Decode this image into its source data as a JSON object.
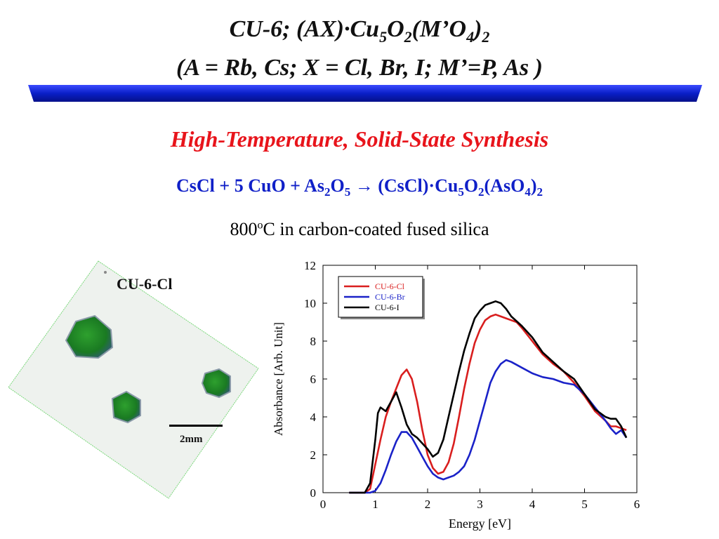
{
  "header": {
    "title_prefix": "CU-6; (AX)·Cu",
    "title_sub1": "5",
    "title_mid1": "O",
    "title_sub2": "2",
    "title_mid2": "(M’O",
    "title_sub3": "4",
    "title_mid3": ")",
    "title_sub4": "2",
    "title_line2": "(A = Rb, Cs; X = Cl, Br, I; M’=P, As )"
  },
  "colors": {
    "banner": "#0a1fc8",
    "subtitle": "#e8141b",
    "equation": "#1020c8"
  },
  "subtitle": "High-Temperature, Solid-State Synthesis",
  "equation": {
    "p1": "CsCl + 5 CuO + As",
    "s1": "2",
    "p2": "O",
    "s2": "5",
    "arrow": "→",
    "p3": " (CsCl)·Cu",
    "s3": "5",
    "p4": "O",
    "s4": "2",
    "p5": "(AsO",
    "s5": "4",
    "p6": ")",
    "s6": "2"
  },
  "condition": {
    "prefix": "800",
    "sup": "o",
    "suffix": "C in carbon-coated fused silica"
  },
  "photo": {
    "label": "CU-6-Cl",
    "scale_label": "2mm"
  },
  "chart_data": {
    "type": "line",
    "title": "",
    "xlabel": "Energy [eV]",
    "ylabel": "Absorbance [Arb. Unit]",
    "xlim": [
      0,
      6
    ],
    "ylim": [
      0,
      12
    ],
    "xticks": [
      0,
      1,
      2,
      3,
      4,
      5,
      6
    ],
    "yticks": [
      0,
      2,
      4,
      6,
      8,
      10,
      12
    ],
    "legend_position": "top-left",
    "series": [
      {
        "name": "CU-6-Cl",
        "color": "#d91e1e",
        "x": [
          0.5,
          0.8,
          0.9,
          1.0,
          1.1,
          1.2,
          1.3,
          1.4,
          1.5,
          1.6,
          1.7,
          1.8,
          1.9,
          2.0,
          2.1,
          2.2,
          2.3,
          2.4,
          2.5,
          2.6,
          2.7,
          2.8,
          2.9,
          3.0,
          3.1,
          3.2,
          3.3,
          3.4,
          3.5,
          3.6,
          3.7,
          3.8,
          4.0,
          4.2,
          4.4,
          4.6,
          4.8,
          5.0,
          5.2,
          5.4,
          5.5,
          5.6,
          5.7,
          5.8
        ],
        "values": [
          0,
          0,
          0.2,
          1.5,
          2.8,
          4.0,
          4.8,
          5.5,
          6.2,
          6.5,
          6.0,
          4.8,
          3.3,
          2.0,
          1.3,
          1.0,
          1.1,
          1.6,
          2.6,
          4.0,
          5.5,
          6.8,
          7.9,
          8.6,
          9.1,
          9.3,
          9.4,
          9.3,
          9.2,
          9.1,
          9.0,
          8.7,
          8.0,
          7.3,
          6.8,
          6.4,
          5.8,
          5.1,
          4.3,
          3.8,
          3.5,
          3.5,
          3.4,
          3.3
        ]
      },
      {
        "name": "CU-6-Br",
        "color": "#1a22c8",
        "x": [
          0.5,
          0.9,
          1.0,
          1.1,
          1.2,
          1.3,
          1.4,
          1.5,
          1.6,
          1.7,
          1.8,
          1.9,
          2.0,
          2.1,
          2.2,
          2.3,
          2.4,
          2.5,
          2.6,
          2.7,
          2.8,
          2.9,
          3.0,
          3.1,
          3.2,
          3.3,
          3.4,
          3.5,
          3.6,
          3.8,
          4.0,
          4.2,
          4.4,
          4.6,
          4.8,
          5.0,
          5.2,
          5.4,
          5.5,
          5.6,
          5.7,
          5.8
        ],
        "values": [
          0,
          0,
          0.1,
          0.5,
          1.2,
          2.0,
          2.7,
          3.2,
          3.2,
          2.9,
          2.4,
          1.9,
          1.4,
          1.0,
          0.8,
          0.7,
          0.8,
          0.9,
          1.1,
          1.4,
          2.0,
          2.8,
          3.8,
          4.8,
          5.8,
          6.4,
          6.8,
          7.0,
          6.9,
          6.6,
          6.3,
          6.1,
          6.0,
          5.8,
          5.7,
          5.2,
          4.5,
          3.8,
          3.4,
          3.1,
          3.3,
          2.9
        ]
      },
      {
        "name": "CU-6-I",
        "color": "#000000",
        "x": [
          0.5,
          0.8,
          0.9,
          1.0,
          1.05,
          1.1,
          1.2,
          1.3,
          1.4,
          1.5,
          1.6,
          1.7,
          1.8,
          1.9,
          2.0,
          2.1,
          2.2,
          2.3,
          2.4,
          2.5,
          2.6,
          2.7,
          2.8,
          2.9,
          3.0,
          3.1,
          3.2,
          3.3,
          3.4,
          3.5,
          3.6,
          3.8,
          4.0,
          4.2,
          4.4,
          4.6,
          4.8,
          5.0,
          5.2,
          5.4,
          5.5,
          5.6,
          5.7,
          5.8
        ],
        "values": [
          0,
          0,
          0.5,
          2.8,
          4.2,
          4.5,
          4.3,
          4.8,
          5.3,
          4.5,
          3.6,
          3.1,
          2.9,
          2.6,
          2.3,
          1.9,
          2.1,
          2.8,
          4.0,
          5.2,
          6.4,
          7.5,
          8.4,
          9.2,
          9.6,
          9.9,
          10.0,
          10.1,
          10.0,
          9.7,
          9.3,
          8.8,
          8.2,
          7.4,
          6.9,
          6.4,
          6.0,
          5.2,
          4.4,
          4.0,
          3.9,
          3.9,
          3.5,
          2.9
        ]
      }
    ]
  }
}
